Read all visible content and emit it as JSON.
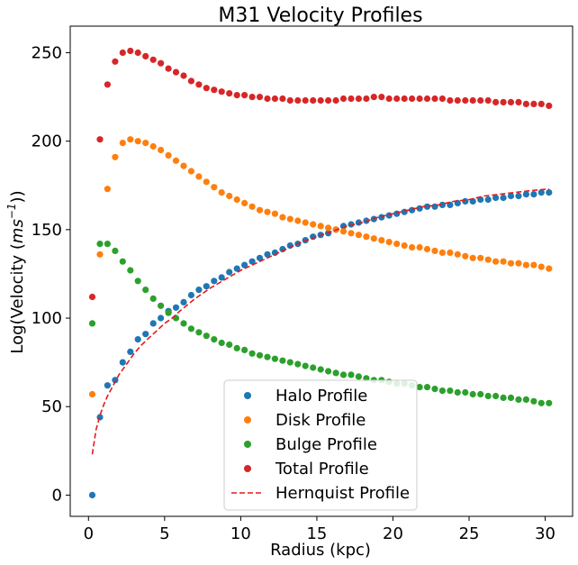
{
  "chart_data": {
    "type": "scatter",
    "title": "M31 Velocity Profiles",
    "xlabel": "Radius (kpc)",
    "ylabel_main": "Log(Velocity (",
    "ylabel_unit_base": "ms",
    "ylabel_unit_exp": "−1",
    "ylabel_end": "))",
    "xlim": [
      -1.2,
      31.8
    ],
    "ylim": [
      -12,
      265
    ],
    "xticks": [
      0,
      5,
      10,
      15,
      20,
      25,
      30
    ],
    "yticks": [
      0,
      50,
      100,
      150,
      200,
      250
    ],
    "legend_position": "lower-center",
    "x": [
      0.25,
      0.75,
      1.25,
      1.75,
      2.25,
      2.75,
      3.25,
      3.75,
      4.25,
      4.75,
      5.25,
      5.75,
      6.25,
      6.75,
      7.25,
      7.75,
      8.25,
      8.75,
      9.25,
      9.75,
      10.25,
      10.75,
      11.25,
      11.75,
      12.25,
      12.75,
      13.25,
      13.75,
      14.25,
      14.75,
      15.25,
      15.75,
      16.25,
      16.75,
      17.25,
      17.75,
      18.25,
      18.75,
      19.25,
      19.75,
      20.25,
      20.75,
      21.25,
      21.75,
      22.25,
      22.75,
      23.25,
      23.75,
      24.25,
      24.75,
      25.25,
      25.75,
      26.25,
      26.75,
      27.25,
      27.75,
      28.25,
      28.75,
      29.25,
      29.75,
      30.25
    ],
    "series": [
      {
        "name": "Halo Profile",
        "color": "#1f77b4",
        "marker": "circle",
        "values": [
          0,
          44,
          62,
          65,
          75,
          81,
          88,
          91,
          97,
          100,
          104,
          106,
          109,
          113,
          116,
          118,
          121,
          123,
          126,
          128,
          130,
          132,
          134,
          136,
          137,
          139,
          141,
          142,
          144,
          146,
          147,
          148,
          150,
          152,
          153,
          154,
          155,
          156,
          157,
          158,
          159,
          160,
          161,
          162,
          163,
          163,
          164,
          164,
          165,
          166,
          166,
          167,
          167,
          168,
          168,
          169,
          169,
          170,
          170,
          171,
          171
        ]
      },
      {
        "name": "Disk Profile",
        "color": "#ff7f0e",
        "marker": "circle",
        "values": [
          57,
          136,
          173,
          191,
          199,
          201,
          200,
          199,
          197,
          195,
          192,
          189,
          186,
          183,
          180,
          177,
          174,
          171,
          169,
          167,
          165,
          163,
          161,
          160,
          159,
          157,
          156,
          155,
          154,
          153,
          152,
          151,
          150,
          149,
          148,
          147,
          146,
          145,
          144,
          143,
          142,
          141,
          140,
          140,
          139,
          138,
          137,
          137,
          136,
          135,
          134,
          134,
          133,
          132,
          132,
          131,
          131,
          130,
          130,
          129,
          128
        ]
      },
      {
        "name": "Bulge Profile",
        "color": "#2ca02c",
        "marker": "circle",
        "values": [
          97,
          142,
          142,
          138,
          132,
          127,
          121,
          116,
          111,
          107,
          103,
          100,
          97,
          94,
          92,
          90,
          88,
          86,
          85,
          83,
          82,
          80,
          79,
          78,
          77,
          76,
          75,
          74,
          73,
          72,
          71,
          70,
          69,
          68,
          68,
          67,
          66,
          65,
          65,
          64,
          63,
          63,
          62,
          61,
          61,
          60,
          59,
          59,
          58,
          58,
          57,
          57,
          56,
          56,
          55,
          55,
          54,
          54,
          53,
          52,
          52
        ]
      },
      {
        "name": "Total Profile",
        "color": "#d62728",
        "marker": "circle",
        "values": [
          112,
          201,
          232,
          245,
          250,
          251,
          250,
          248,
          246,
          244,
          241,
          239,
          237,
          234,
          232,
          230,
          229,
          228,
          227,
          226,
          226,
          225,
          225,
          224,
          224,
          224,
          223,
          223,
          223,
          223,
          223,
          223,
          223,
          224,
          224,
          224,
          224,
          225,
          225,
          224,
          224,
          224,
          224,
          224,
          224,
          224,
          224,
          223,
          223,
          223,
          223,
          223,
          223,
          222,
          222,
          222,
          222,
          221,
          221,
          221,
          220
        ]
      },
      {
        "name": "Hernquist Profile",
        "color": "#e31a1c",
        "marker": "dashed-line",
        "x": [
          0.25,
          0.5,
          0.75,
          1,
          1.25,
          1.5,
          2,
          2.5,
          3,
          3.5,
          4,
          4.5,
          5,
          5.5,
          6,
          7,
          8,
          9,
          10,
          11,
          12,
          13,
          14,
          15,
          16,
          17,
          18,
          19,
          20,
          21,
          22,
          23,
          24,
          25,
          26,
          27,
          28,
          29,
          30.25
        ],
        "values": [
          23,
          37,
          45,
          51,
          56,
          60,
          68,
          74,
          80,
          85,
          89,
          93,
          97,
          100,
          104,
          111,
          117,
          122,
          127,
          131,
          135,
          139,
          143,
          146,
          149,
          152,
          154,
          157,
          159,
          161,
          163,
          164,
          166,
          167,
          169,
          170,
          171,
          172,
          173
        ]
      }
    ]
  }
}
